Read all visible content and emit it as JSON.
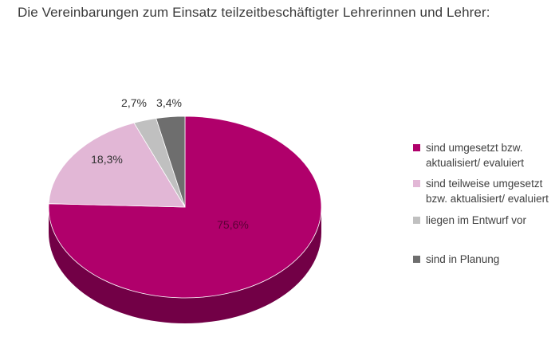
{
  "chart_data": {
    "type": "pie",
    "title": "Die Vereinbarungen zum Einsatz teilzeitbeschäftigter Lehrerinnen und Lehrer:",
    "categories": [
      "sind umgesetzt bzw. aktualisiert/ evaluiert",
      "sind teilweise umgesetzt bzw. aktualisiert/ evaluiert",
      "liegen im Entwurf vor",
      "sind in Planung"
    ],
    "values": [
      75.6,
      18.3,
      2.7,
      3.4
    ],
    "labels": [
      "75,6%",
      "18,3%",
      "2,7%",
      "3,4%"
    ],
    "colors": [
      "#b0006b",
      "#e2b7d6",
      "#c0c0c0",
      "#6e6e6e"
    ],
    "side_colors": [
      "#720046",
      "#b98aab",
      "#8c8c8c",
      "#444444"
    ],
    "legend_position": "right",
    "three_d": true
  }
}
